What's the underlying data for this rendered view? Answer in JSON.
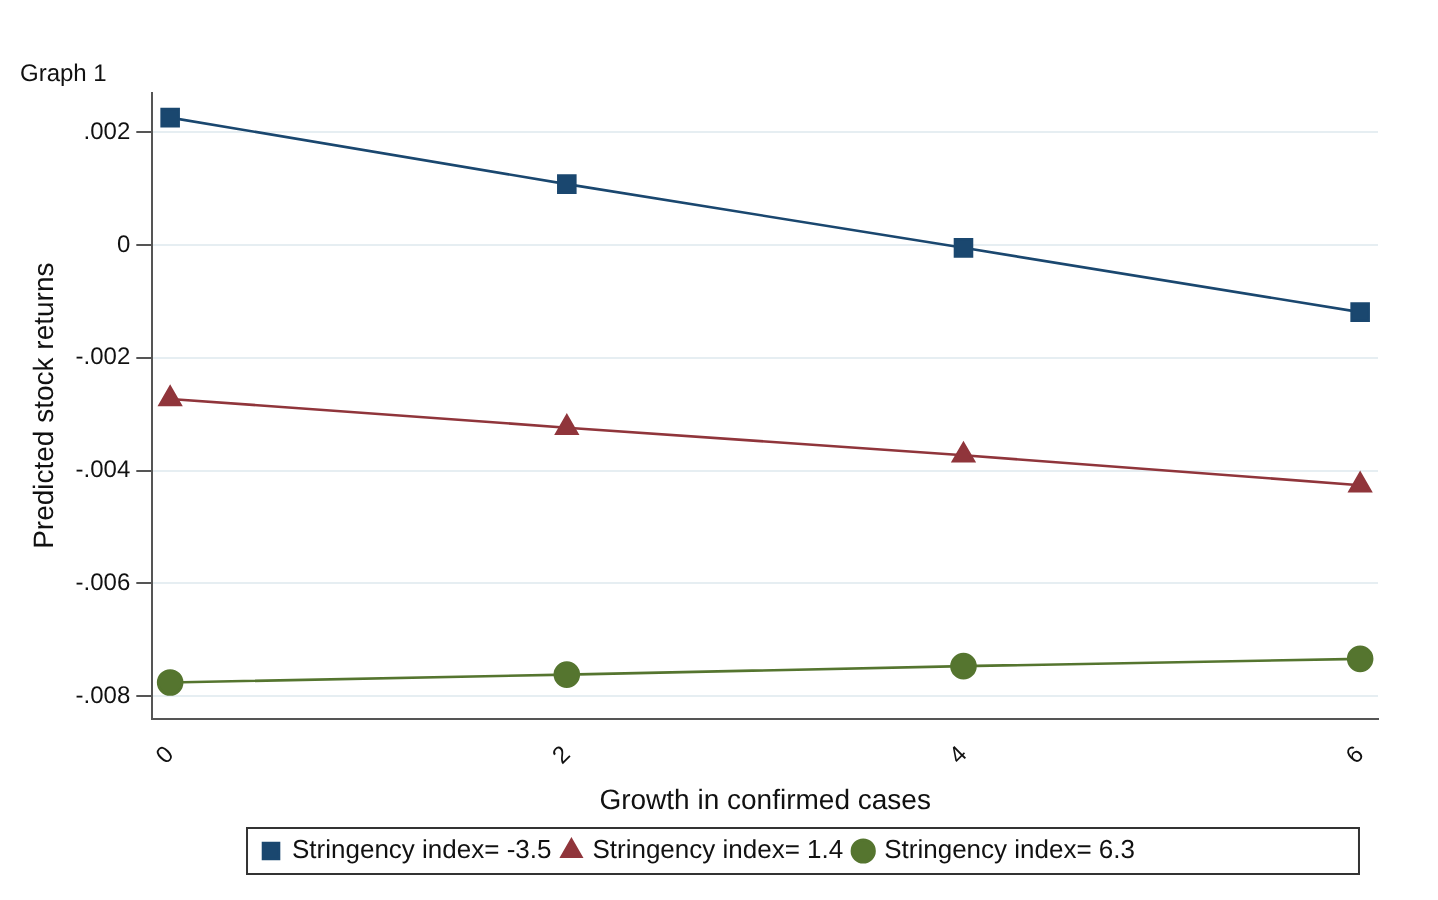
{
  "chart_data": {
    "type": "line",
    "title": "Graph 1",
    "xlabel": "Growth in confirmed cases",
    "ylabel": "Predicted stock returns",
    "x": [
      0,
      2,
      4,
      6
    ],
    "series": [
      {
        "name": "Stringency index= -3.5",
        "color": "#1a476f",
        "marker": "square",
        "values": [
          0.00226,
          0.00108,
          -5e-05,
          -0.00119
        ]
      },
      {
        "name": "Stringency index= 1.4",
        "color": "#90353b",
        "marker": "triangle",
        "values": [
          -0.00273,
          -0.00324,
          -0.00373,
          -0.00426
        ]
      },
      {
        "name": "Stringency index= 6.3",
        "color": "#55752f",
        "marker": "circle",
        "values": [
          -0.00776,
          -0.00762,
          -0.00747,
          -0.00734
        ]
      }
    ],
    "xlim": [
      -0.09,
      6.09
    ],
    "xticks": [
      0,
      2,
      4,
      6
    ],
    "ylim": [
      -0.0084,
      0.0027
    ],
    "yticks": [
      {
        "value": -0.008,
        "label": "-.008"
      },
      {
        "value": -0.006,
        "label": "-.006"
      },
      {
        "value": -0.004,
        "label": "-.004"
      },
      {
        "value": -0.002,
        "label": "-.002"
      },
      {
        "value": 0,
        "label": "0"
      },
      {
        "value": 0.002,
        "label": ".002"
      }
    ],
    "grid": "y",
    "legend": "bottom",
    "line_style": "solid"
  }
}
